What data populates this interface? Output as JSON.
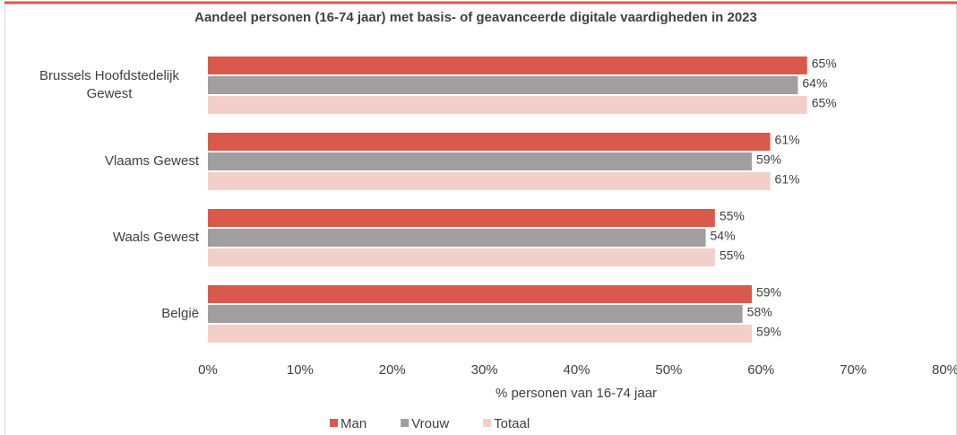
{
  "chart_data": {
    "type": "hbar",
    "title": "Aandeel personen (16-74 jaar) met basis- of geavanceerde digitale vaardigheden in 2023",
    "x_label": "% personen van 16-74 jaar",
    "categories": [
      "Brussels Hoofdstedelijk Gewest",
      "Vlaams Gewest",
      "Waals Gewest",
      "België"
    ],
    "series": [
      {
        "name": "Man",
        "color": "#d9594a",
        "values": [
          65,
          61,
          55,
          59
        ],
        "value_labels": [
          "65%",
          "61%",
          "55%",
          "59%"
        ]
      },
      {
        "name": "Vrouw",
        "color": "#a09e9e",
        "values": [
          64,
          59,
          54,
          58
        ],
        "value_labels": [
          "64%",
          "59%",
          "54%",
          "58%"
        ]
      },
      {
        "name": "Totaal",
        "color": "#f2cfc9",
        "values": [
          65,
          61,
          55,
          59
        ],
        "value_labels": [
          "65%",
          "61%",
          "55%",
          "59%"
        ]
      }
    ],
    "xlim": [
      0,
      80
    ],
    "xticks": [
      {
        "value": 0,
        "label": "0%"
      },
      {
        "value": 10,
        "label": "10%"
      },
      {
        "value": 20,
        "label": "20%"
      },
      {
        "value": 30,
        "label": "30%"
      },
      {
        "value": 40,
        "label": "40%"
      },
      {
        "value": 50,
        "label": "50%"
      },
      {
        "value": 60,
        "label": "60%"
      },
      {
        "value": 70,
        "label": "70%"
      },
      {
        "value": 80,
        "label": "80%"
      }
    ],
    "legend": "bottom"
  }
}
